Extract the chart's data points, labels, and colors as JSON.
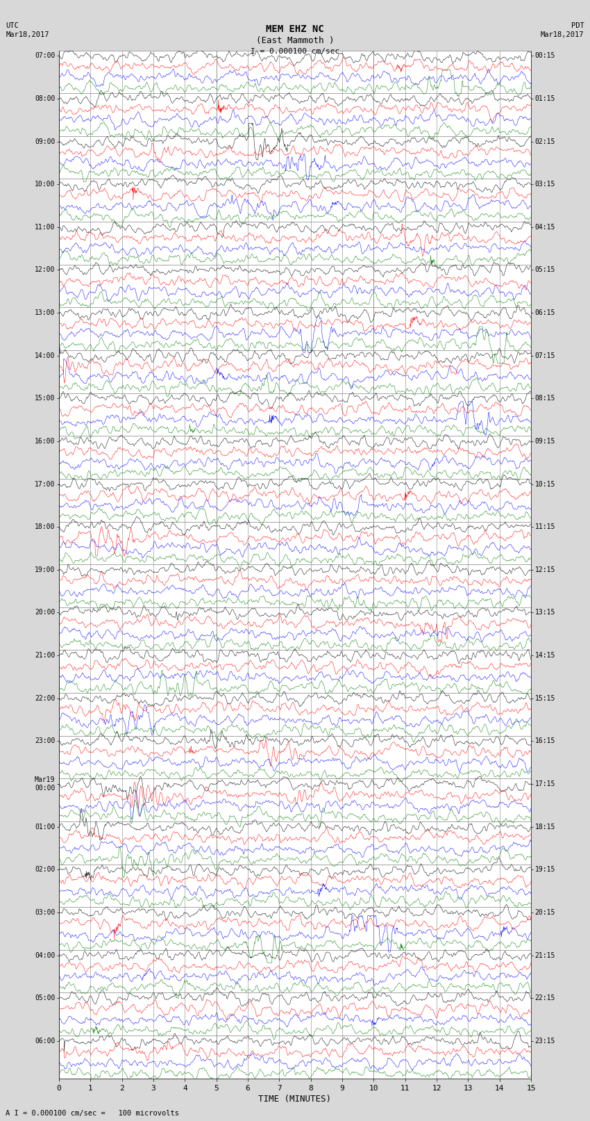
{
  "title_line1": "MEM EHZ NC",
  "title_line2": "(East Mammoth )",
  "scale_label": "I = 0.000100 cm/sec",
  "footer_label": "A I = 0.000100 cm/sec =   100 microvolts",
  "utc_label": "UTC\nMar18,2017",
  "pdt_label": "PDT\nMar18,2017",
  "xlabel": "TIME (MINUTES)",
  "left_times_utc": [
    "07:00",
    "08:00",
    "09:00",
    "10:00",
    "11:00",
    "12:00",
    "13:00",
    "14:00",
    "15:00",
    "16:00",
    "17:00",
    "18:00",
    "19:00",
    "20:00",
    "21:00",
    "22:00",
    "23:00",
    "Mar19\n00:00",
    "01:00",
    "02:00",
    "03:00",
    "04:00",
    "05:00",
    "06:00"
  ],
  "right_times_pdt": [
    "00:15",
    "01:15",
    "02:15",
    "03:15",
    "04:15",
    "05:15",
    "06:15",
    "07:15",
    "08:15",
    "09:15",
    "10:15",
    "11:15",
    "12:15",
    "13:15",
    "14:15",
    "15:15",
    "16:15",
    "17:15",
    "18:15",
    "19:15",
    "20:15",
    "21:15",
    "22:15",
    "23:15"
  ],
  "n_hours": 24,
  "traces_per_hour": 4,
  "colors_cycle": [
    "black",
    "red",
    "blue",
    "green"
  ],
  "background_color": "#d8d8d8",
  "plot_background": "white",
  "grid_color": "#808080",
  "seed": 42,
  "noise_scale": 0.08,
  "samples": 1800
}
